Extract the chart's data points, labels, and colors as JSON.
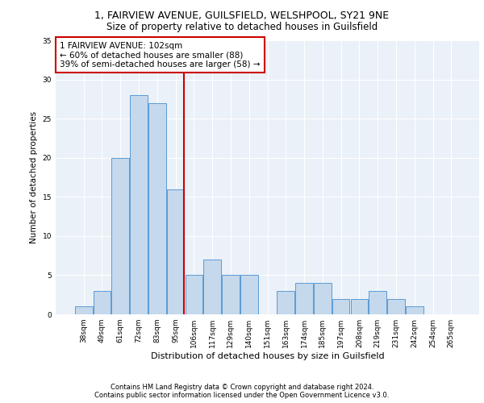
{
  "title1": "1, FAIRVIEW AVENUE, GUILSFIELD, WELSHPOOL, SY21 9NE",
  "title2": "Size of property relative to detached houses in Guilsfield",
  "xlabel": "Distribution of detached houses by size in Guilsfield",
  "ylabel": "Number of detached properties",
  "categories": [
    "38sqm",
    "49sqm",
    "61sqm",
    "72sqm",
    "83sqm",
    "95sqm",
    "106sqm",
    "117sqm",
    "129sqm",
    "140sqm",
    "151sqm",
    "163sqm",
    "174sqm",
    "185sqm",
    "197sqm",
    "208sqm",
    "219sqm",
    "231sqm",
    "242sqm",
    "254sqm",
    "265sqm"
  ],
  "values": [
    1,
    3,
    20,
    28,
    27,
    16,
    5,
    7,
    5,
    5,
    0,
    3,
    4,
    4,
    2,
    2,
    3,
    2,
    1,
    0,
    0
  ],
  "bar_color": "#c5d8ec",
  "bar_edge_color": "#5b9bd5",
  "vline_color": "#cc0000",
  "annotation_text": "1 FAIRVIEW AVENUE: 102sqm\n← 60% of detached houses are smaller (88)\n39% of semi-detached houses are larger (58) →",
  "annotation_box_color": "#ffffff",
  "annotation_box_edge": "#cc0000",
  "ylim": [
    0,
    35
  ],
  "yticks": [
    0,
    5,
    10,
    15,
    20,
    25,
    30,
    35
  ],
  "footnote1": "Contains HM Land Registry data © Crown copyright and database right 2024.",
  "footnote2": "Contains public sector information licensed under the Open Government Licence v3.0.",
  "bg_color": "#eaf1f8",
  "fig_bg_color": "#ffffff",
  "title1_fontsize": 9,
  "title2_fontsize": 8.5,
  "xlabel_fontsize": 8,
  "ylabel_fontsize": 7.5,
  "tick_fontsize": 6.5,
  "annotation_fontsize": 7.5,
  "footnote_fontsize": 6.0
}
